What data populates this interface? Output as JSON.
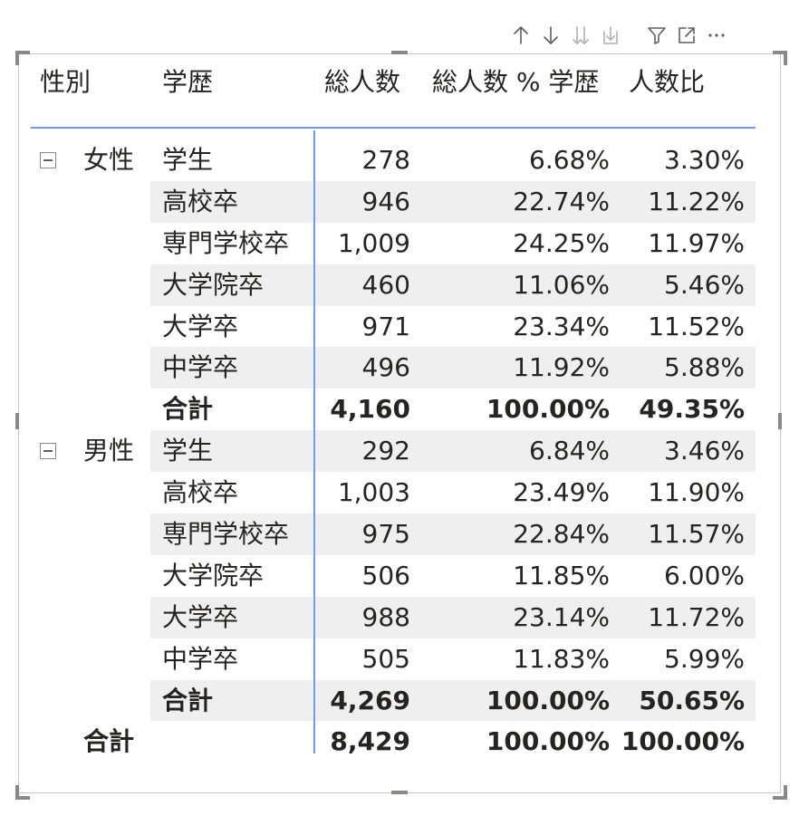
{
  "toolbar": {
    "buttons": [
      {
        "name": "drill-up-icon",
        "icon": "arrow-up",
        "enabled": true
      },
      {
        "name": "drill-down-icon",
        "icon": "arrow-down",
        "enabled": true
      },
      {
        "name": "next-level-icon",
        "icon": "double-arrow-down",
        "enabled": false
      },
      {
        "name": "expand-all-icon",
        "icon": "fork-arrow-down",
        "enabled": false
      },
      {
        "name": "filter-icon",
        "icon": "funnel",
        "enabled": true
      },
      {
        "name": "focus-mode-icon",
        "icon": "expand-box",
        "enabled": true
      },
      {
        "name": "more-options-icon",
        "icon": "ellipsis",
        "enabled": true
      }
    ]
  },
  "matrix": {
    "headers": {
      "gender": "性別",
      "education": "学歴",
      "total": "総人数",
      "pct_education": "総人数 % 学歴",
      "ratio": "人数比"
    },
    "groups": [
      {
        "label": "女性",
        "rows": [
          {
            "education": "学生",
            "total": "278",
            "pct": "6.68%",
            "ratio": "3.30%"
          },
          {
            "education": "高校卒",
            "total": "946",
            "pct": "22.74%",
            "ratio": "11.22%"
          },
          {
            "education": "専門学校卒",
            "total": "1,009",
            "pct": "24.25%",
            "ratio": "11.97%"
          },
          {
            "education": "大学院卒",
            "total": "460",
            "pct": "11.06%",
            "ratio": "5.46%"
          },
          {
            "education": "大学卒",
            "total": "971",
            "pct": "23.34%",
            "ratio": "11.52%"
          },
          {
            "education": "中学卒",
            "total": "496",
            "pct": "11.92%",
            "ratio": "5.88%"
          }
        ],
        "subtotal": {
          "label": "合計",
          "total": "4,160",
          "pct": "100.00%",
          "ratio": "49.35%"
        }
      },
      {
        "label": "男性",
        "rows": [
          {
            "education": "学生",
            "total": "292",
            "pct": "6.84%",
            "ratio": "3.46%"
          },
          {
            "education": "高校卒",
            "total": "1,003",
            "pct": "23.49%",
            "ratio": "11.90%"
          },
          {
            "education": "専門学校卒",
            "total": "975",
            "pct": "22.84%",
            "ratio": "11.57%"
          },
          {
            "education": "大学院卒",
            "total": "506",
            "pct": "11.85%",
            "ratio": "6.00%"
          },
          {
            "education": "大学卒",
            "total": "988",
            "pct": "23.14%",
            "ratio": "11.72%"
          },
          {
            "education": "中学卒",
            "total": "505",
            "pct": "11.83%",
            "ratio": "5.99%"
          }
        ],
        "subtotal": {
          "label": "合計",
          "total": "4,269",
          "pct": "100.00%",
          "ratio": "50.65%"
        }
      }
    ],
    "grand_total": {
      "label": "合計",
      "total": "8,429",
      "pct": "100.00%",
      "ratio": "100.00%"
    }
  },
  "colors": {
    "accent": "#6f9ee0",
    "row_shade": "#efefef",
    "text": "#252423",
    "icon": "#605e5c",
    "icon_disabled": "#b3b0ad"
  }
}
